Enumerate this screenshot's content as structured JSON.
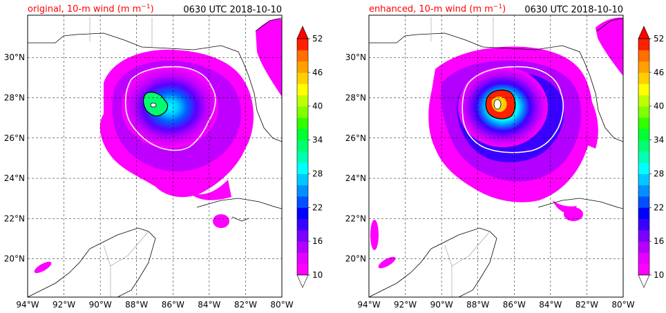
{
  "panels": [
    {
      "id": "original",
      "title_prefix": "original, 10-m wind (m m",
      "title_sup": "−1",
      "title_suffix": ")",
      "time": "0630 UTC 2018-10-10"
    },
    {
      "id": "enhanced",
      "title_prefix": "enhanced, 10-m wind (m m",
      "title_sup": "−1",
      "title_suffix": ")",
      "time": "0630 UTC 2018-10-10"
    }
  ],
  "map": {
    "lon_ticks": [
      "94°W",
      "92°W",
      "90°W",
      "88°W",
      "86°W",
      "84°W",
      "82°W",
      "80°W"
    ],
    "lat_ticks": [
      "30°N",
      "28°N",
      "26°N",
      "24°N",
      "22°N",
      "20°N"
    ],
    "lon_values": [
      -94,
      -92,
      -90,
      -88,
      -86,
      -84,
      -82,
      -80
    ],
    "lat_values": [
      30,
      28,
      26,
      24,
      22,
      20
    ],
    "lon_range": [
      -94,
      -80
    ],
    "lat_range": [
      18.1,
      32.1
    ],
    "grid": true,
    "storm_center": {
      "lon": -86.8,
      "lat": 27.8
    }
  },
  "colorbar": {
    "tick_labels": [
      "52",
      "46",
      "40",
      "34",
      "28",
      "22",
      "16",
      "10"
    ],
    "tick_values": [
      52,
      46,
      40,
      34,
      28,
      22,
      16,
      10
    ],
    "range": [
      10,
      52
    ],
    "extend": "both",
    "levels": [
      10,
      12,
      14,
      16,
      18,
      20,
      22,
      24,
      26,
      28,
      30,
      32,
      34,
      36,
      38,
      40,
      42,
      44,
      46,
      48,
      50,
      52
    ],
    "colors": [
      "#ff00ff",
      "#e600ff",
      "#b400ff",
      "#7a00ff",
      "#3a00ff",
      "#0000ff",
      "#0050ff",
      "#0090ff",
      "#00c8ff",
      "#00ffff",
      "#00ffb0",
      "#00ff70",
      "#00ff30",
      "#30ff00",
      "#80ff00",
      "#c0ff00",
      "#ffff00",
      "#ffd000",
      "#ffa000",
      "#ff7000",
      "#ff2000"
    ],
    "over_color": "#ff0000",
    "under_color": "#ffffff"
  },
  "colors": {
    "title_red": "#ff0000",
    "contour_white": "#ffffff",
    "contour_black": "#000000"
  }
}
